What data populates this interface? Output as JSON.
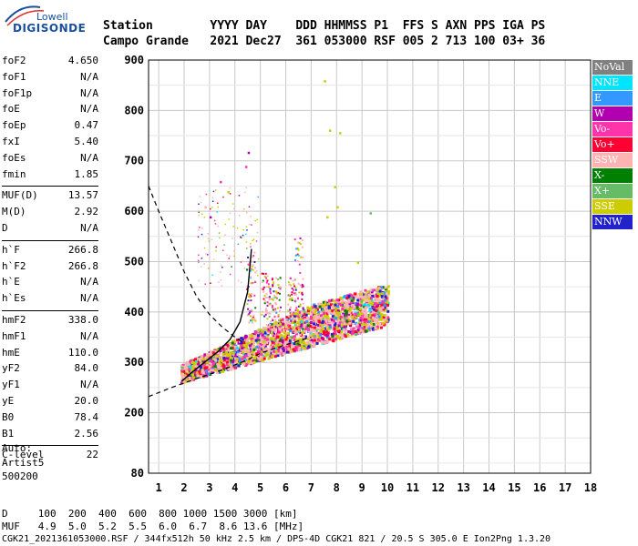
{
  "logo": {
    "line1": "Lowell",
    "line2": "DIGISONDE"
  },
  "header": {
    "row1": "Station        YYYY DAY    DDD HHMMSS P1  FFS S AXN PPS IGA PS",
    "row2": "Campo Grande   2021 Dec27  361 053000 RSF 005 2 713 100 03+ 36"
  },
  "params": [
    {
      "group": [
        {
          "k": "foF2",
          "v": "4.650"
        },
        {
          "k": "foF1",
          "v": "N/A"
        },
        {
          "k": "foF1p",
          "v": "N/A"
        },
        {
          "k": "foE",
          "v": "N/A"
        },
        {
          "k": "foEp",
          "v": "0.47"
        },
        {
          "k": "fxI",
          "v": "5.40"
        },
        {
          "k": "foEs",
          "v": "N/A"
        },
        {
          "k": "fmin",
          "v": "1.85"
        }
      ]
    },
    {
      "group": [
        {
          "k": "MUF(D)",
          "v": "13.57"
        },
        {
          "k": "M(D)",
          "v": "2.92"
        },
        {
          "k": "D",
          "v": "N/A"
        }
      ]
    },
    {
      "group": [
        {
          "k": "h`F",
          "v": "266.8"
        },
        {
          "k": "h`F2",
          "v": "266.8"
        },
        {
          "k": "h`E",
          "v": "N/A"
        },
        {
          "k": "h`Es",
          "v": "N/A"
        }
      ]
    },
    {
      "group": [
        {
          "k": "hmF2",
          "v": "338.0"
        },
        {
          "k": "hmF1",
          "v": "N/A"
        },
        {
          "k": "hmE",
          "v": "110.0"
        },
        {
          "k": "yF2",
          "v": "84.0"
        },
        {
          "k": "yF1",
          "v": "N/A"
        },
        {
          "k": "yE",
          "v": "20.0"
        },
        {
          "k": "B0",
          "v": "78.4"
        },
        {
          "k": "B1",
          "v": "2.56"
        }
      ]
    },
    {
      "group": [
        {
          "k": "C-level",
          "v": "22"
        }
      ]
    }
  ],
  "autoscale": {
    "line1": "Auto:",
    "line2": "Artist5",
    "line3": "500200"
  },
  "footer": {
    "d_row": "D     100  200  400  600  800 1000 1500 3000 [km]",
    "muf_row": "MUF   4.9  5.0  5.2  5.5  6.0  6.7  8.6 13.6 [MHz]",
    "file_row": "CGK21_2021361053000.RSF / 344fx512h 50 kHz 2.5 km / DPS-4D CGK21 821 / 20.5 S 305.0 E Ion2Png 1.3.20"
  },
  "legend": [
    {
      "label": "NoVal",
      "color": "#808080"
    },
    {
      "label": "NNE",
      "color": "#00e5ff"
    },
    {
      "label": "E",
      "color": "#3399ff"
    },
    {
      "label": "W",
      "color": "#b000b0"
    },
    {
      "label": "Vo-",
      "color": "#ff33aa"
    },
    {
      "label": "Vo+",
      "color": "#ff0033"
    },
    {
      "label": "SSW",
      "color": "#ffb3b3"
    },
    {
      "label": "X-",
      "color": "#008000"
    },
    {
      "label": "X+",
      "color": "#66bb66"
    },
    {
      "label": "SSE",
      "color": "#cccc00"
    },
    {
      "label": "NNW",
      "color": "#2222cc"
    }
  ],
  "chart_data": {
    "type": "scatter",
    "xlabel": "",
    "ylabel": "",
    "xlim": [
      0.6,
      18
    ],
    "ylim": [
      80,
      900
    ],
    "x_ticks": [
      1,
      2,
      3,
      4,
      5,
      6,
      7,
      8,
      9,
      10,
      11,
      12,
      13,
      14,
      15,
      16,
      17,
      18
    ],
    "y_ticks": [
      80,
      200,
      300,
      400,
      500,
      600,
      700,
      800,
      900
    ],
    "grid": true,
    "dense_cluster": {
      "x_range": [
        1.85,
        10.0
      ],
      "h_range": [
        250,
        420
      ]
    },
    "profile_curve": {
      "x": [
        1.9,
        2.3,
        2.8,
        3.3,
        3.8,
        4.2,
        4.5,
        4.65
      ],
      "y": [
        262,
        280,
        300,
        320,
        345,
        380,
        440,
        525
      ]
    },
    "dashed_upper": {
      "x": [
        0.6,
        1.0,
        1.5,
        2.0,
        2.5,
        3.0,
        3.5,
        4.0,
        4.3
      ],
      "y": [
        650,
        600,
        540,
        480,
        430,
        395,
        370,
        350,
        340
      ]
    },
    "dashed_lower": {
      "x": [
        0.6,
        1.5,
        2.5,
        3.5,
        4.5,
        5.0,
        6.0,
        7.0
      ],
      "y": [
        232,
        250,
        268,
        285,
        305,
        318,
        335,
        350
      ]
    },
    "sparse_points": [
      {
        "x": 7.5,
        "y": 860,
        "c": "#cccc00"
      },
      {
        "x": 7.7,
        "y": 762,
        "c": "#cccc00"
      },
      {
        "x": 8.1,
        "y": 757,
        "c": "#cccc00"
      },
      {
        "x": 7.9,
        "y": 650,
        "c": "#cccc00"
      },
      {
        "x": 8.0,
        "y": 610,
        "c": "#cccc00"
      },
      {
        "x": 7.6,
        "y": 590,
        "c": "#cccc00"
      },
      {
        "x": 9.3,
        "y": 598,
        "c": "#66bb66"
      },
      {
        "x": 4.5,
        "y": 718,
        "c": "#b000b0"
      },
      {
        "x": 4.4,
        "y": 690,
        "c": "#ff33aa"
      },
      {
        "x": 3.4,
        "y": 660,
        "c": "#ff33aa"
      },
      {
        "x": 2.8,
        "y": 610,
        "c": "#ffb3b3"
      },
      {
        "x": 3.0,
        "y": 590,
        "c": "#b000b0"
      },
      {
        "x": 3.7,
        "y": 640,
        "c": "#cccc00"
      },
      {
        "x": 8.8,
        "y": 500,
        "c": "#cccc00"
      }
    ]
  }
}
